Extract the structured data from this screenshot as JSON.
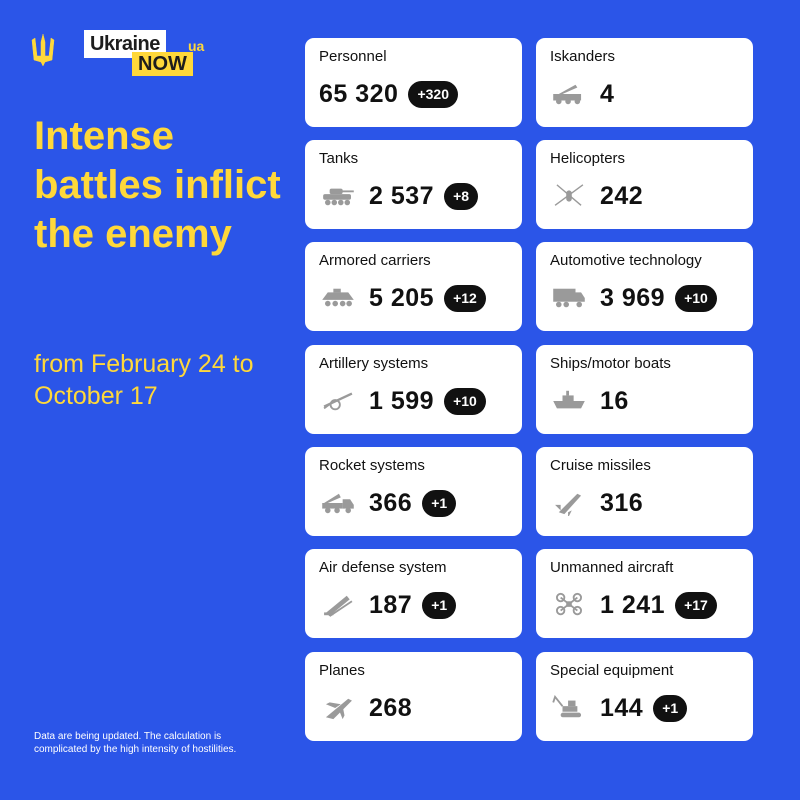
{
  "brand": {
    "part1": "Ukraine",
    "part2": "NOW",
    "part3": "ua"
  },
  "headline": "Intense battles inflict the enemy",
  "subline": "from February 24 to October 17",
  "footnote": "Data are being updated. The calculation is complicated by the high intensity of hostilities.",
  "cards": [
    {
      "label": "Personnel",
      "value": "65 320",
      "delta": "+320",
      "icon": "person-icon"
    },
    {
      "label": "Iskanders",
      "value": "4",
      "delta": "",
      "icon": "missile-launcher-icon"
    },
    {
      "label": "Tanks",
      "value": "2 537",
      "delta": "+8",
      "icon": "tank-icon"
    },
    {
      "label": "Helicopters",
      "value": "242",
      "delta": "",
      "icon": "helicopter-icon"
    },
    {
      "label": "Armored carriers",
      "value": "5 205",
      "delta": "+12",
      "icon": "armored-carrier-icon"
    },
    {
      "label": "Automotive technology",
      "value": "3 969",
      "delta": "+10",
      "icon": "truck-icon"
    },
    {
      "label": "Artillery systems",
      "value": "1 599",
      "delta": "+10",
      "icon": "artillery-icon"
    },
    {
      "label": "Ships/motor boats",
      "value": "16",
      "delta": "",
      "icon": "ship-icon"
    },
    {
      "label": "Rocket systems",
      "value": "366",
      "delta": "+1",
      "icon": "rocket-system-icon"
    },
    {
      "label": "Cruise missiles",
      "value": "316",
      "delta": "",
      "icon": "cruise-missile-icon"
    },
    {
      "label": "Air defense system",
      "value": "187",
      "delta": "+1",
      "icon": "air-defense-icon"
    },
    {
      "label": "Unmanned aircraft",
      "value": "1 241",
      "delta": "+17",
      "icon": "drone-icon"
    },
    {
      "label": "Planes",
      "value": "268",
      "delta": "",
      "icon": "plane-icon"
    },
    {
      "label": "Special equipment",
      "value": "144",
      "delta": "+1",
      "icon": "excavator-icon"
    }
  ],
  "colors": {
    "background": "#2b55e8",
    "accent": "#ffd83a",
    "card": "#ffffff",
    "badge": "#111111"
  }
}
